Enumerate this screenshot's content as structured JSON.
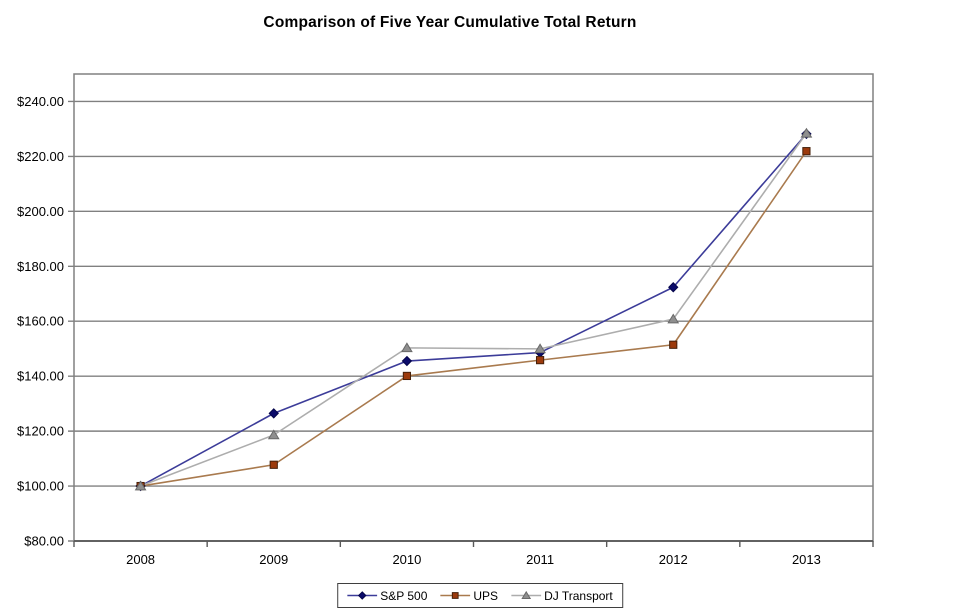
{
  "chart_data": {
    "type": "line",
    "title": "Comparison of Five Year Cumulative Total Return",
    "categories": [
      "2008",
      "2009",
      "2010",
      "2011",
      "2012",
      "2013"
    ],
    "y_axis": {
      "min": 80,
      "max": 250,
      "tick_step": 20,
      "tick_values": [
        240,
        220,
        200,
        180,
        160,
        140,
        120,
        100,
        80
      ],
      "tick_labels": [
        "$240.00",
        "$220.00",
        "$200.00",
        "$180.00",
        "$160.00",
        "$140.00",
        "$120.00",
        "$100.00",
        "$80.00"
      ]
    },
    "grid": true,
    "legend_position": "bottom",
    "series": [
      {
        "name": "S&P 500",
        "marker": "diamond",
        "values": [
          100.0,
          126.46,
          145.51,
          148.59,
          172.37,
          228.19
        ],
        "line_color": "#3c3c99",
        "marker_fill": "#0b0b6b",
        "marker_stroke": "#05054a"
      },
      {
        "name": "UPS",
        "marker": "square",
        "values": [
          100.0,
          107.75,
          140.09,
          145.84,
          151.44,
          221.91
        ],
        "line_color": "#a97a4e",
        "marker_fill": "#9c3a0c",
        "marker_stroke": "#45200a"
      },
      {
        "name": "DJ Transport",
        "marker": "triangle",
        "values": [
          100.0,
          118.59,
          150.3,
          149.94,
          160.78,
          228.42
        ],
        "line_color": "#adadad",
        "marker_fill": "#8f8f8f",
        "marker_stroke": "#696969"
      }
    ],
    "colors": {
      "gridline": "#808080",
      "plot_border": "#808080",
      "axis_line": "#595959",
      "label_text": "#000000",
      "legend_border": "#3f3f3f",
      "plot_background": "#ffffff"
    }
  }
}
